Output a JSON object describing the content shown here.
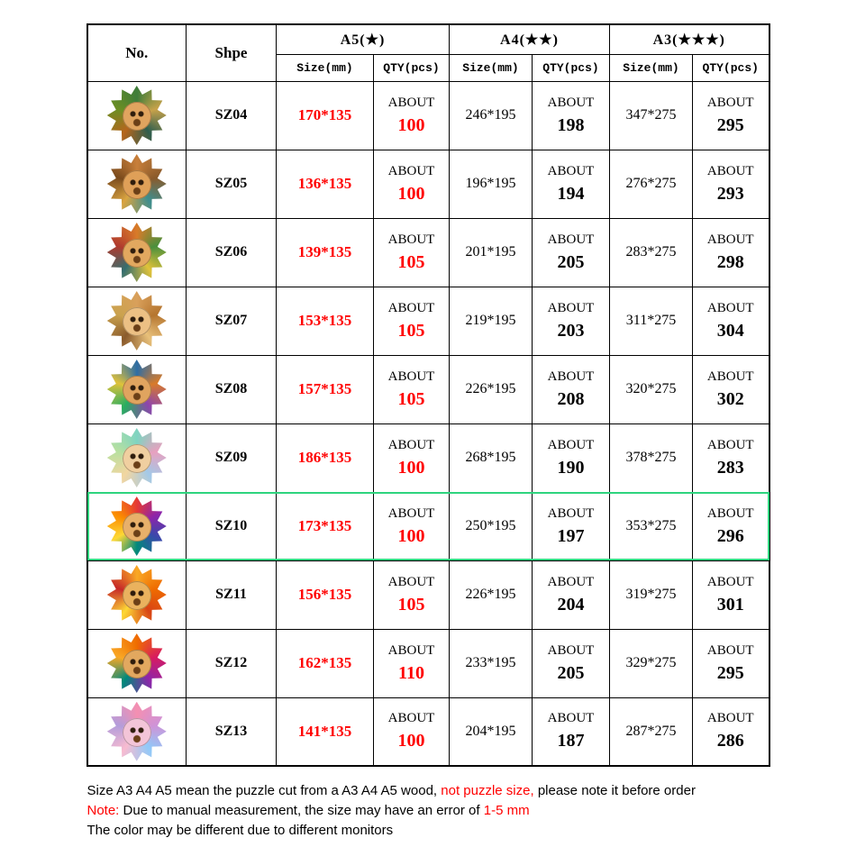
{
  "table": {
    "header": {
      "no_label": "No.",
      "shape_label": "Shpe",
      "groups": [
        {
          "label": "A5(★)"
        },
        {
          "label": "A4(★★)"
        },
        {
          "label": "A3(★★★)"
        }
      ],
      "size_label": "Size(mm)",
      "qty_label": "QTY(pcs)"
    },
    "about_label": "ABOUT",
    "accent_red": "#ff0000",
    "highlight_green": "#2ed47e",
    "rows": [
      {
        "shape": "SZ04",
        "icon": "lion-head-puzzle",
        "icon_colors": [
          "#3f7d3a",
          "#c8a24a",
          "#2e5e4e",
          "#b5651d",
          "#6b8e23"
        ],
        "face_color": "#e0a45f",
        "highlighted": false,
        "a5_size": "170*135",
        "a5_qty": "100",
        "a4_size": "246*195",
        "a4_qty": "198",
        "a3_size": "347*275",
        "a3_qty": "295"
      },
      {
        "shape": "SZ05",
        "icon": "lion-head-puzzle",
        "icon_colors": [
          "#c87f3a",
          "#8a5a2b",
          "#3e8e8e",
          "#d9a441",
          "#7a4a1c"
        ],
        "face_color": "#dfa058",
        "highlighted": false,
        "a5_size": "136*135",
        "a5_qty": "100",
        "a4_size": "196*195",
        "a4_qty": "194",
        "a3_size": "276*275",
        "a3_qty": "293"
      },
      {
        "shape": "SZ06",
        "icon": "lion-head-puzzle",
        "icon_colors": [
          "#d97b29",
          "#4a8f3c",
          "#e0c23a",
          "#356e6e",
          "#b03a2e"
        ],
        "face_color": "#e2a85f",
        "highlighted": false,
        "a5_size": "139*135",
        "a5_qty": "105",
        "a4_size": "201*195",
        "a4_qty": "205",
        "a3_size": "283*275",
        "a3_qty": "298"
      },
      {
        "shape": "SZ07",
        "icon": "lioness-head-puzzle",
        "icon_colors": [
          "#d9a05b",
          "#b5752f",
          "#e8c07a",
          "#8a5a2b",
          "#caa24e"
        ],
        "face_color": "#ecc084",
        "highlighted": false,
        "a5_size": "153*135",
        "a5_qty": "105",
        "a4_size": "219*195",
        "a4_qty": "203",
        "a3_size": "311*275",
        "a3_qty": "304"
      },
      {
        "shape": "SZ08",
        "icon": "lion-head-puzzle",
        "icon_colors": [
          "#2e6da4",
          "#d97b29",
          "#8e44ad",
          "#27ae60",
          "#e0c23a"
        ],
        "face_color": "#e0a45f",
        "highlighted": false,
        "a5_size": "157*135",
        "a5_qty": "105",
        "a4_size": "226*195",
        "a4_qty": "208",
        "a3_size": "320*275",
        "a3_qty": "302"
      },
      {
        "shape": "SZ09",
        "icon": "lion-head-puzzle",
        "icon_colors": [
          "#7fd4c1",
          "#e8a0bf",
          "#a3c9e8",
          "#f2d6a0",
          "#b8e0a0"
        ],
        "face_color": "#f0cfa0",
        "highlighted": false,
        "a5_size": "186*135",
        "a5_qty": "100",
        "a4_size": "268*195",
        "a4_qty": "190",
        "a3_size": "378*275",
        "a3_qty": "283"
      },
      {
        "shape": "SZ10",
        "icon": "lion-head-puzzle",
        "icon_colors": [
          "#e53935",
          "#8e24aa",
          "#3949ab",
          "#00897b",
          "#fdd835",
          "#fb8c00"
        ],
        "face_color": "#e8b06a",
        "highlighted": true,
        "a5_size": "173*135",
        "a5_qty": "100",
        "a4_size": "250*195",
        "a4_qty": "197",
        "a3_size": "353*275",
        "a3_qty": "296"
      },
      {
        "shape": "SZ11",
        "icon": "lion-head-puzzle",
        "icon_colors": [
          "#f9a825",
          "#ef6c00",
          "#d84315",
          "#fdd835",
          "#c62828"
        ],
        "face_color": "#eab25e",
        "highlighted": false,
        "a5_size": "156*135",
        "a5_qty": "105",
        "a4_size": "226*195",
        "a4_qty": "204",
        "a3_size": "319*275",
        "a3_qty": "301"
      },
      {
        "shape": "SZ12",
        "icon": "lion-head-puzzle",
        "icon_colors": [
          "#ef6c00",
          "#d81b60",
          "#8e24aa",
          "#00897b",
          "#f9a825"
        ],
        "face_color": "#e2a85f",
        "highlighted": false,
        "a5_size": "162*135",
        "a5_qty": "110",
        "a4_size": "233*195",
        "a4_qty": "205",
        "a3_size": "329*275",
        "a3_qty": "295"
      },
      {
        "shape": "SZ13",
        "icon": "lion-mandala-puzzle",
        "icon_colors": [
          "#f48fb1",
          "#ce93d8",
          "#90caf9",
          "#f8bbd0",
          "#b39ddb"
        ],
        "face_color": "#f3c5d8",
        "highlighted": false,
        "a5_size": "141*135",
        "a5_qty": "100",
        "a4_size": "204*195",
        "a4_qty": "187",
        "a3_size": "287*275",
        "a3_qty": "286"
      }
    ]
  },
  "notes": {
    "l1a": "Size A3 A4 A5 mean the puzzle cut from a A3 A4 A5 wood, ",
    "l1b": "not puzzle size,",
    "l1c": " please note it before order",
    "l2a": "Note: ",
    "l2b": "Due to manual measurement, the size may have an error of ",
    "l2c": "1-5 mm",
    "l3": "The color may be different due to different monitors"
  }
}
